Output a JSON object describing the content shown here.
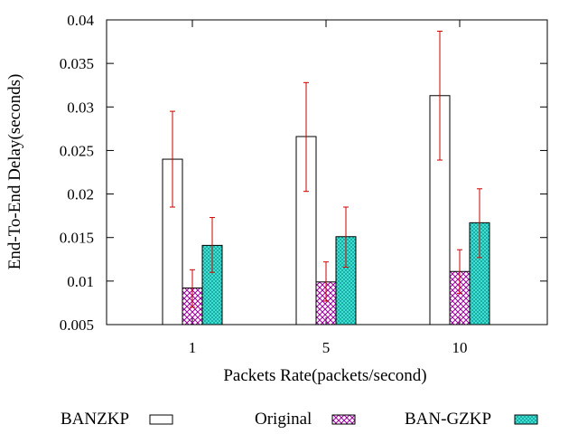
{
  "chart_data": {
    "type": "bar",
    "xlabel": "Packets Rate(packets/second)",
    "ylabel": "End-To-End Delay(seconds)",
    "categories": [
      "1",
      "5",
      "10"
    ],
    "ylim": [
      0.005,
      0.04
    ],
    "yticks": [
      "0.005",
      "0.01",
      "0.015",
      "0.02",
      "0.025",
      "0.03",
      "0.035",
      "0.04"
    ],
    "grid": false,
    "legend_position": "bottom",
    "series": [
      {
        "name": "BANZKP",
        "pattern": "empty",
        "values": [
          0.024,
          0.0266,
          0.0313
        ],
        "errors_low": [
          0.0185,
          0.0203,
          0.0239
        ],
        "errors_high": [
          0.0295,
          0.0328,
          0.0387
        ]
      },
      {
        "name": "Original",
        "pattern": "crosshatch",
        "color": "#9b009b",
        "values": [
          0.0092,
          0.0099,
          0.0111
        ],
        "errors_low": [
          0.007,
          0.0077,
          0.0086
        ],
        "errors_high": [
          0.0113,
          0.0122,
          0.0136
        ]
      },
      {
        "name": "BAN-GZKP",
        "pattern": "dots",
        "color": "#00b3b3",
        "values": [
          0.0141,
          0.0151,
          0.0167
        ],
        "errors_low": [
          0.011,
          0.0116,
          0.0127
        ],
        "errors_high": [
          0.0173,
          0.0185,
          0.0206
        ]
      }
    ],
    "error_bar_color": "#cc0000"
  }
}
